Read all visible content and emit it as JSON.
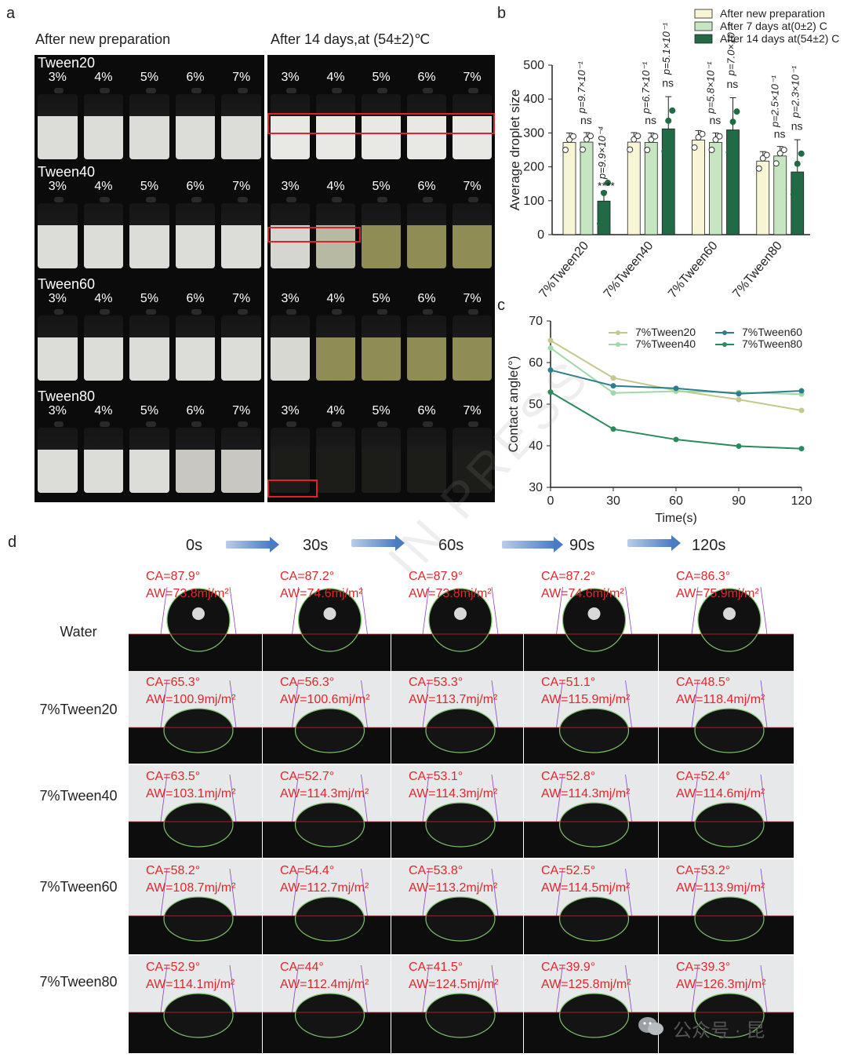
{
  "panel_a": {
    "letter": "a",
    "left_title": "After new preparation",
    "right_title": "After 14 days,at (54±2)℃",
    "rows": [
      {
        "label": "Tween20",
        "concentrations": [
          "3%",
          "4%",
          "5%",
          "6%",
          "7%"
        ]
      },
      {
        "label": "Tween40",
        "concentrations": [
          "3%",
          "4%",
          "5%",
          "6%",
          "7%"
        ]
      },
      {
        "label": "Tween60",
        "concentrations": [
          "3%",
          "4%",
          "5%",
          "6%",
          "7%"
        ]
      },
      {
        "label": "Tween80",
        "concentrations": [
          "3%",
          "4%",
          "5%",
          "6%",
          "7%"
        ]
      }
    ],
    "colors": {
      "milky": "#dcdcd8",
      "clear_yellow": "#8f8d55",
      "highlight_box": "#e0202a"
    }
  },
  "panel_b": {
    "letter": "b",
    "p_values": [
      "p=9.7×10⁻¹",
      "p=9.9×10⁻⁴",
      "p=6.7×10⁻¹",
      "p=5.1×10⁻¹",
      "p=5.8×10⁻¹",
      "p=7.0×10⁻¹",
      "p=2.5×10⁻¹",
      "p=2.3×10⁻¹"
    ],
    "sig_labels": [
      "ns",
      "****",
      "ns",
      "ns",
      "ns",
      "ns",
      "ns",
      "ns"
    ]
  },
  "panel_c": {
    "letter": "c"
  },
  "chart_data": [
    {
      "type": "bar",
      "title": "",
      "xlabel": "",
      "ylabel": "Average droplet size",
      "ylim": [
        0,
        500
      ],
      "yticks": [
        "0",
        "100",
        "200",
        "300",
        "400",
        "500"
      ],
      "categories": [
        "7%Tween20",
        "7%Tween40",
        "7%Tween60",
        "7%Tween80"
      ],
      "legend_position": "top-right",
      "series": [
        {
          "name": "After new preparation",
          "color": "#f7f5d4",
          "values": [
            272,
            273,
            279,
            217
          ]
        },
        {
          "name": "After 7 days at(0±2) C",
          "color": "#c6e6c1",
          "values": [
            273,
            272,
            272,
            232
          ]
        },
        {
          "name": "After 14 days at(54±2) C",
          "color": "#216a45",
          "values": [
            99,
            312,
            309,
            185
          ]
        }
      ]
    },
    {
      "type": "line",
      "title": "",
      "xlabel": "Time(s)",
      "ylabel": "Contact angle(°)",
      "x": [
        0,
        30,
        60,
        90,
        120
      ],
      "xlim": [
        0,
        120
      ],
      "ylim": [
        30,
        70
      ],
      "yticks": [
        "30",
        "40",
        "50",
        "60",
        "70"
      ],
      "xticks": [
        "0",
        "30",
        "60",
        "90",
        "120"
      ],
      "legend_position": "top-right",
      "series": [
        {
          "name": "7%Tween20",
          "color": "#c3c98e",
          "values": [
            65.3,
            56.3,
            53.3,
            51.1,
            48.5
          ]
        },
        {
          "name": "7%Tween40",
          "color": "#9fd8a9",
          "values": [
            63.5,
            52.7,
            53.1,
            52.8,
            52.4
          ]
        },
        {
          "name": "7%Tween60",
          "color": "#2b7f8c",
          "values": [
            58.2,
            54.4,
            53.8,
            52.5,
            53.2
          ]
        },
        {
          "name": "7%Tween80",
          "color": "#2a8a5c",
          "values": [
            52.9,
            44.0,
            41.5,
            39.9,
            39.3
          ]
        }
      ]
    }
  ],
  "panel_d": {
    "letter": "d",
    "times": [
      "0s",
      "30s",
      "60s",
      "90s",
      "120s"
    ],
    "rows": [
      {
        "label": "Water",
        "cells": [
          {
            "ca": "CA=87.9°",
            "aw": "AW=73.8mj/m²"
          },
          {
            "ca": "CA=87.2°",
            "aw": "AW=74.6mj/m²"
          },
          {
            "ca": "CA=87.9°",
            "aw": "AW=73.8mj/m²"
          },
          {
            "ca": "CA=87.2°",
            "aw": "AW=74.6mj/m²"
          },
          {
            "ca": "CA=86.3°",
            "aw": "AW=75.9mj/m²"
          }
        ]
      },
      {
        "label": "7%Tween20",
        "cells": [
          {
            "ca": "CA=65.3°",
            "aw": "AW=100.9mj/m²"
          },
          {
            "ca": "CA=56.3°",
            "aw": "AW=100.6mj/m²"
          },
          {
            "ca": "CA=53.3°",
            "aw": "AW=113.7mj/m²"
          },
          {
            "ca": "CA=51.1°",
            "aw": "AW=115.9mj/m²"
          },
          {
            "ca": "CA=48.5°",
            "aw": "AW=118.4mj/m²"
          }
        ]
      },
      {
        "label": "7%Tween40",
        "cells": [
          {
            "ca": "CA=63.5°",
            "aw": "AW=103.1mj/m²"
          },
          {
            "ca": "CA=52.7°",
            "aw": "AW=114.3mj/m²"
          },
          {
            "ca": "CA=53.1°",
            "aw": "AW=114.3mj/m²"
          },
          {
            "ca": "CA=52.8°",
            "aw": "AW=114.3mj/m²"
          },
          {
            "ca": "CA=52.4°",
            "aw": "AW=114.6mj/m²"
          }
        ]
      },
      {
        "label": "7%Tween60",
        "cells": [
          {
            "ca": "CA=58.2°",
            "aw": "AW=108.7mj/m²"
          },
          {
            "ca": "CA=54.4°",
            "aw": "AW=112.7mj/m²"
          },
          {
            "ca": "CA=53.8°",
            "aw": "AW=113.2mj/m²"
          },
          {
            "ca": "CA=52.5°",
            "aw": "AW=114.5mj/m²"
          },
          {
            "ca": "CA=53.2°",
            "aw": "AW=113.9mj/m²"
          }
        ]
      },
      {
        "label": "7%Tween80",
        "cells": [
          {
            "ca": "CA=52.9°",
            "aw": "AW=114.1mj/m²"
          },
          {
            "ca": "CA=44°",
            "aw": "AW=112.4mj/m²"
          },
          {
            "ca": "CA=41.5°",
            "aw": "AW=124.5mj/m²"
          },
          {
            "ca": "CA=39.9°",
            "aw": "AW=125.8mj/m²"
          },
          {
            "ca": "CA=39.3°",
            "aw": "AW=126.3mj/m²"
          }
        ]
      }
    ]
  },
  "overlay": {
    "watermark_text": "IN PRESS",
    "account_text": "公众号 · 昆"
  }
}
